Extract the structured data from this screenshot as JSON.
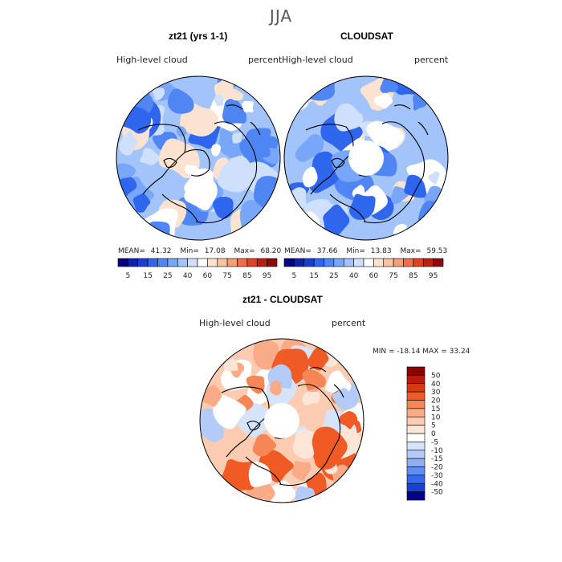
{
  "page_title": "JJA",
  "panels": [
    {
      "title": "zt21 (yrs 1-1)",
      "left_label": "High-level cloud",
      "right_label": "percent",
      "stats": {
        "mean_label": "MEAN=",
        "mean": "41.32",
        "min_label": "Min=",
        "min": "17.08",
        "max_label": "Max=",
        "max": "68.20"
      }
    },
    {
      "title": "CLOUDSAT",
      "left_label": "High-level cloud",
      "right_label": "percent",
      "stats": {
        "mean_label": "MEAN=",
        "mean": "37.66",
        "min_label": "Min=",
        "min": "13.83",
        "max_label": "Max=",
        "max": "59.53"
      }
    }
  ],
  "abs_colorbar": {
    "colors": [
      "#000080",
      "#0b23a8",
      "#1640d0",
      "#2f66ee",
      "#4f86f4",
      "#78a6f8",
      "#a3c4fa",
      "#cfe0fc",
      "#ffffff",
      "#fbe3d0",
      "#f8c3a3",
      "#f59e78",
      "#ee704b",
      "#dc4424",
      "#bf1f12",
      "#8c0a0a"
    ],
    "tick_labels": [
      "5",
      "15",
      "25",
      "40",
      "60",
      "75",
      "85",
      "95"
    ]
  },
  "diff_panel": {
    "title": "zt21 - CLOUDSAT",
    "left_label": "High-level cloud",
    "right_label": "percent",
    "stats_text": "MIN = -18.14 MAX = 33.24"
  },
  "diff_colorbar": {
    "colors": [
      "#8c0000",
      "#b81a0c",
      "#d93a14",
      "#f05a24",
      "#f78656",
      "#f9ab88",
      "#fbccb2",
      "#fde5d8",
      "#ffffff",
      "#d6e4fb",
      "#b4cbf7",
      "#8eb0f2",
      "#5e8ff0",
      "#3568ef",
      "#1a3fd8",
      "#00008c"
    ],
    "tick_labels": [
      "50",
      "40",
      "30",
      "20",
      "15",
      "10",
      "5",
      "0",
      "-5",
      "-10",
      "-15",
      "-20",
      "-30",
      "-40",
      "-50"
    ]
  },
  "field_colors": {
    "abs_base": "#a3c4fa",
    "abs_patches": [
      "#cfe0fc",
      "#78a6f8",
      "#4f86f4",
      "#2f66ee",
      "#fbe3d0",
      "#ffffff"
    ],
    "diff_base": "#fbccb2",
    "diff_patches": [
      "#f9ab88",
      "#f78656",
      "#f05a24",
      "#fde5d8",
      "#d6e4fb",
      "#b4cbf7",
      "#ffffff"
    ]
  }
}
